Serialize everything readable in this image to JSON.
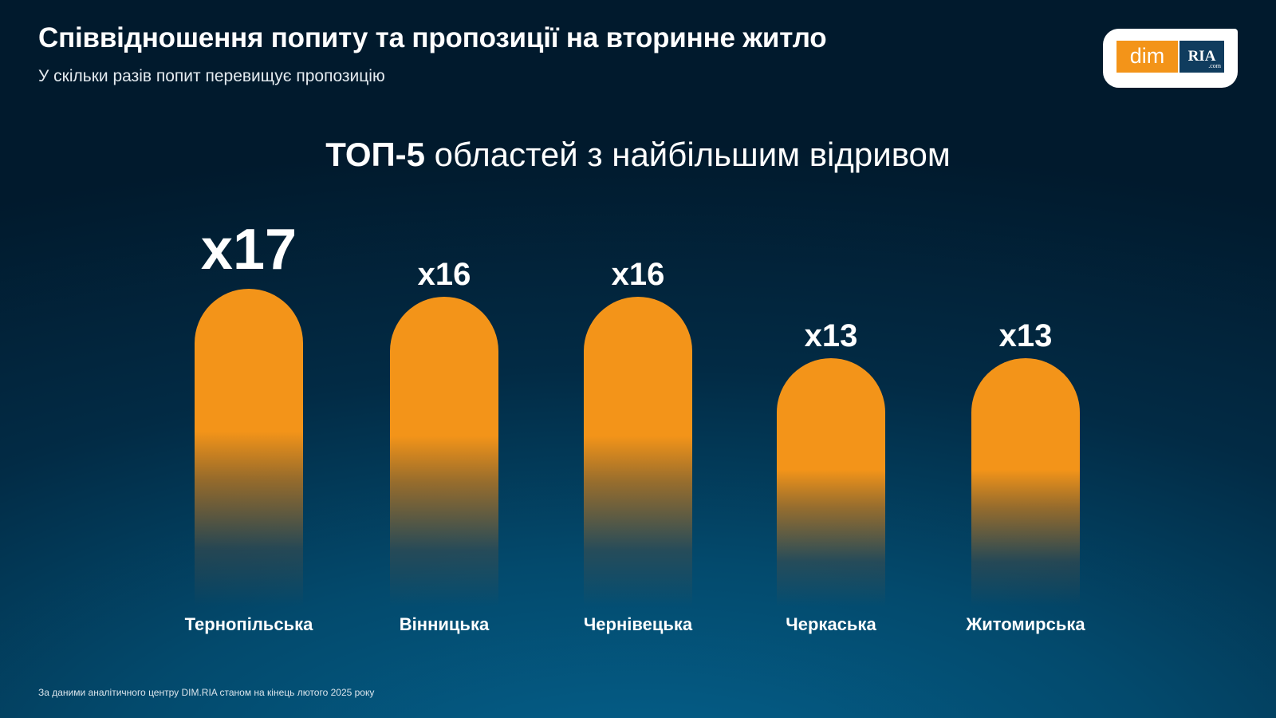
{
  "header": {
    "title": "Співвідношення попиту та пропозиції на вторинне житло",
    "subtitle": "У скільки разів попит перевищує пропозицію"
  },
  "logo": {
    "left": "dim",
    "right": "RIA",
    "suffix": ".com"
  },
  "chart_data": {
    "type": "bar",
    "title_bold": "ТОП-5",
    "title_rest": " областей з найбільшим відривом",
    "categories": [
      "Тернопільська",
      "Вінницька",
      "Чернівецька",
      "Черкаська",
      "Житомирська"
    ],
    "values": [
      17,
      16,
      16,
      13,
      13
    ],
    "value_labels": [
      "x17",
      "x16",
      "x16",
      "x13",
      "x13"
    ],
    "bar_color": "#f39419"
  },
  "footer": {
    "source": "За даними аналітичного центру DIM.RIA станом на кінець лютого 2025 року"
  }
}
